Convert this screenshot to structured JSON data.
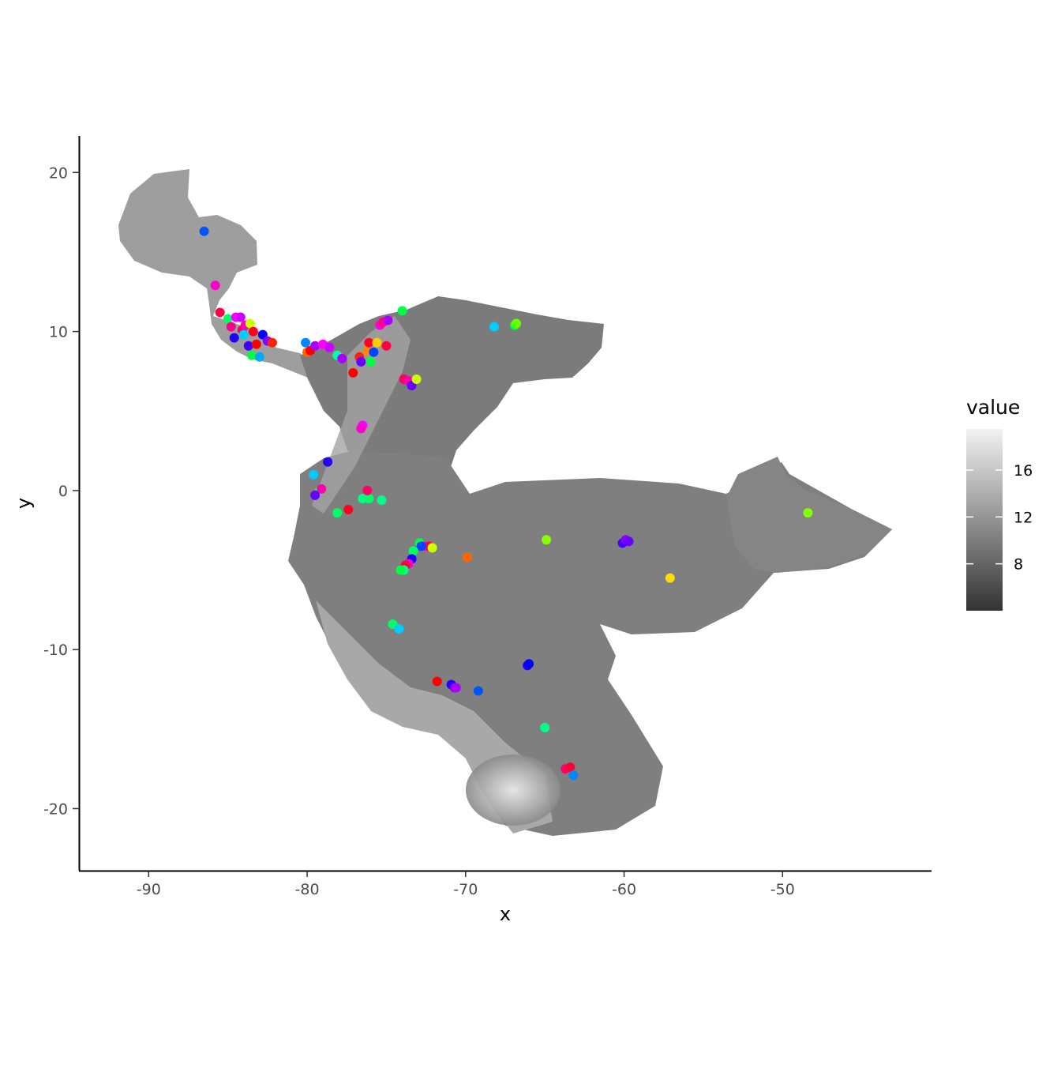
{
  "chart_data": {
    "type": "scatter",
    "title": "",
    "xlabel": "x",
    "ylabel": "y",
    "xlim": [
      -94.4,
      -40.6
    ],
    "ylim": [
      -23.9,
      22.3
    ],
    "x_ticks": [
      -90,
      -80,
      -70,
      -60,
      -50
    ],
    "y_ticks": [
      -20,
      -10,
      0,
      10,
      20
    ],
    "x_tick_labels": [
      "-90",
      "-80",
      "-70",
      "-60",
      "-50"
    ],
    "y_tick_labels": [
      "-20",
      "-10",
      "0",
      "10",
      "20"
    ],
    "grid": false,
    "background_raster": {
      "description": "grayscale raster",
      "colorbar_title": "value",
      "colorbar_range": [
        4,
        19.5
      ],
      "colorbar_ticks": [
        8,
        12,
        16
      ],
      "colorbar_tick_labels": [
        "8",
        "12",
        "16"
      ],
      "color_low": "#333333",
      "color_high": "#f2f2f2"
    },
    "legend": {
      "title": "value",
      "position": "right"
    },
    "points": [
      {
        "x": -86.5,
        "y": 16.3,
        "color": "#0055ff"
      },
      {
        "x": -85.8,
        "y": 12.9,
        "color": "#ff00cc"
      },
      {
        "x": -85.5,
        "y": 11.2,
        "color": "#ff0044"
      },
      {
        "x": -85.0,
        "y": 10.8,
        "color": "#00ff66"
      },
      {
        "x": -84.8,
        "y": 10.3,
        "color": "#ff0088"
      },
      {
        "x": -84.6,
        "y": 9.6,
        "color": "#2200ff"
      },
      {
        "x": -84.5,
        "y": 10.9,
        "color": "#ff00ff"
      },
      {
        "x": -84.2,
        "y": 10.9,
        "color": "#cc00ff"
      },
      {
        "x": -84.1,
        "y": 10.1,
        "color": "#ff0066"
      },
      {
        "x": -84.0,
        "y": 9.8,
        "color": "#00ccff"
      },
      {
        "x": -83.9,
        "y": 10.4,
        "color": "#ff00aa"
      },
      {
        "x": -83.7,
        "y": 9.1,
        "color": "#4400ff"
      },
      {
        "x": -83.6,
        "y": 10.5,
        "color": "#ccff00"
      },
      {
        "x": -83.5,
        "y": 8.5,
        "color": "#00ff44"
      },
      {
        "x": -83.4,
        "y": 10.0,
        "color": "#ff0022"
      },
      {
        "x": -83.2,
        "y": 9.2,
        "color": "#ff0000"
      },
      {
        "x": -83.0,
        "y": 8.4,
        "color": "#00aaff"
      },
      {
        "x": -82.8,
        "y": 9.8,
        "color": "#0000ff"
      },
      {
        "x": -82.5,
        "y": 9.4,
        "color": "#8800ff"
      },
      {
        "x": -82.2,
        "y": 9.3,
        "color": "#ff2200"
      },
      {
        "x": -80.1,
        "y": 9.3,
        "color": "#0088ff"
      },
      {
        "x": -80.0,
        "y": 8.7,
        "color": "#ff6600"
      },
      {
        "x": -79.8,
        "y": 8.8,
        "color": "#ff0000"
      },
      {
        "x": -79.5,
        "y": 9.1,
        "color": "#aa00ff"
      },
      {
        "x": -79.0,
        "y": 9.2,
        "color": "#ff00ff"
      },
      {
        "x": -78.6,
        "y": 9.0,
        "color": "#cc00ff"
      },
      {
        "x": -78.1,
        "y": 8.5,
        "color": "#00ffaa"
      },
      {
        "x": -77.8,
        "y": 8.3,
        "color": "#aa00ff"
      },
      {
        "x": -77.1,
        "y": 7.4,
        "color": "#ff0000"
      },
      {
        "x": -76.7,
        "y": 8.4,
        "color": "#ff2200"
      },
      {
        "x": -76.6,
        "y": 8.1,
        "color": "#6600ff"
      },
      {
        "x": -76.2,
        "y": 8.8,
        "color": "#ff8800"
      },
      {
        "x": -76.1,
        "y": 9.3,
        "color": "#ff0022"
      },
      {
        "x": -76.0,
        "y": 8.1,
        "color": "#00ff44"
      },
      {
        "x": -75.8,
        "y": 8.7,
        "color": "#0044ff"
      },
      {
        "x": -75.6,
        "y": 9.3,
        "color": "#ffcc00"
      },
      {
        "x": -75.4,
        "y": 10.4,
        "color": "#ff00cc"
      },
      {
        "x": -75.2,
        "y": 10.6,
        "color": "#ff0088"
      },
      {
        "x": -75.0,
        "y": 9.1,
        "color": "#ff0044"
      },
      {
        "x": -74.9,
        "y": 10.7,
        "color": "#aa00ff"
      },
      {
        "x": -74.0,
        "y": 11.3,
        "color": "#00ff44"
      },
      {
        "x": -73.9,
        "y": 7.0,
        "color": "#ff0066"
      },
      {
        "x": -73.6,
        "y": 6.9,
        "color": "#ff00aa"
      },
      {
        "x": -73.4,
        "y": 6.6,
        "color": "#6600ff"
      },
      {
        "x": -73.1,
        "y": 7.0,
        "color": "#ccff00"
      },
      {
        "x": -76.5,
        "y": 4.1,
        "color": "#ff00ff"
      },
      {
        "x": -76.6,
        "y": 3.9,
        "color": "#ff00cc"
      },
      {
        "x": -68.2,
        "y": 10.3,
        "color": "#00ccff"
      },
      {
        "x": -66.9,
        "y": 10.4,
        "color": "#00ff44"
      },
      {
        "x": -66.8,
        "y": 10.5,
        "color": "#66ff00"
      },
      {
        "x": -78.7,
        "y": 1.8,
        "color": "#2200ff"
      },
      {
        "x": -79.6,
        "y": 1.0,
        "color": "#00ccff"
      },
      {
        "x": -79.2,
        "y": 0.0,
        "color": "#00ff88"
      },
      {
        "x": -79.1,
        "y": 0.1,
        "color": "#ff00aa"
      },
      {
        "x": -79.5,
        "y": -0.3,
        "color": "#6600ff"
      },
      {
        "x": -77.4,
        "y": -1.2,
        "color": "#ff0022"
      },
      {
        "x": -78.1,
        "y": -1.4,
        "color": "#00ff66"
      },
      {
        "x": -76.5,
        "y": -0.5,
        "color": "#00ff88"
      },
      {
        "x": -76.1,
        "y": -0.5,
        "color": "#00ff66"
      },
      {
        "x": -76.2,
        "y": 0.0,
        "color": "#ff0066"
      },
      {
        "x": -75.3,
        "y": -0.6,
        "color": "#00ff88"
      },
      {
        "x": -72.9,
        "y": -3.3,
        "color": "#00ff44"
      },
      {
        "x": -72.6,
        "y": -3.5,
        "color": "#ff00cc"
      },
      {
        "x": -72.3,
        "y": -3.5,
        "color": "#ff0044"
      },
      {
        "x": -72.1,
        "y": -3.6,
        "color": "#ccff00"
      },
      {
        "x": -72.8,
        "y": -3.5,
        "color": "#0044ff"
      },
      {
        "x": -73.3,
        "y": -3.8,
        "color": "#00ff66"
      },
      {
        "x": -73.4,
        "y": -4.3,
        "color": "#2200ff"
      },
      {
        "x": -73.6,
        "y": -4.6,
        "color": "#ff00cc"
      },
      {
        "x": -73.8,
        "y": -4.7,
        "color": "#ff0044"
      },
      {
        "x": -73.9,
        "y": -5.0,
        "color": "#00ff88"
      },
      {
        "x": -74.1,
        "y": -5.0,
        "color": "#00ff44"
      },
      {
        "x": -69.9,
        "y": -4.2,
        "color": "#ff6600"
      },
      {
        "x": -64.9,
        "y": -3.1,
        "color": "#88ff00"
      },
      {
        "x": -60.1,
        "y": -3.3,
        "color": "#4400ff"
      },
      {
        "x": -59.9,
        "y": -3.1,
        "color": "#8800ff"
      },
      {
        "x": -59.7,
        "y": -3.2,
        "color": "#6600ff"
      },
      {
        "x": -57.1,
        "y": -5.5,
        "color": "#ffdd00"
      },
      {
        "x": -48.4,
        "y": -1.4,
        "color": "#88ff00"
      },
      {
        "x": -74.6,
        "y": -8.4,
        "color": "#00ff66"
      },
      {
        "x": -74.2,
        "y": -8.7,
        "color": "#00ccff"
      },
      {
        "x": -66.1,
        "y": -11.0,
        "color": "#2200ff"
      },
      {
        "x": -66.0,
        "y": -10.9,
        "color": "#0000ff"
      },
      {
        "x": -71.8,
        "y": -12.0,
        "color": "#ff0000"
      },
      {
        "x": -70.9,
        "y": -12.2,
        "color": "#2200ff"
      },
      {
        "x": -70.7,
        "y": -12.4,
        "color": "#8800ff"
      },
      {
        "x": -70.6,
        "y": -12.4,
        "color": "#aa00ff"
      },
      {
        "x": -69.2,
        "y": -12.6,
        "color": "#0055ff"
      },
      {
        "x": -65.0,
        "y": -14.9,
        "color": "#00ff88"
      },
      {
        "x": -63.7,
        "y": -17.5,
        "color": "#ff0066"
      },
      {
        "x": -63.4,
        "y": -17.4,
        "color": "#ff0033"
      },
      {
        "x": -63.2,
        "y": -17.9,
        "color": "#0088ff"
      }
    ]
  }
}
